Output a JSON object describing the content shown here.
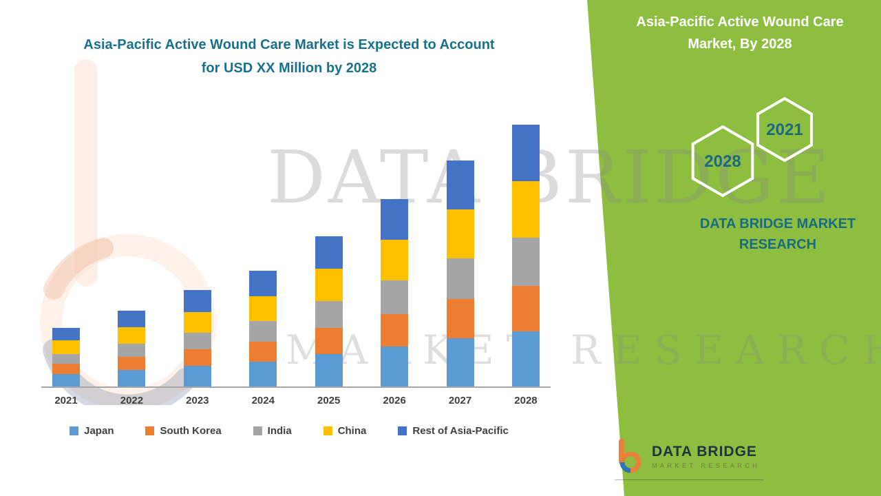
{
  "header": {
    "line1": "Asia-Pacific Active Wound Care Market is Expected to Account",
    "line2": "for USD XX Million by 2028"
  },
  "side_panel": {
    "title_line1": "Asia-Pacific Active Wound Care",
    "title_line2": "Market, By 2028",
    "hex_left_label": "2028",
    "hex_right_label": "2021",
    "brand_line1": "DATA BRIDGE MARKET",
    "brand_line2": "RESEARCH",
    "bg_color": "#8DBE3F",
    "teal_text_color": "#1B6B80"
  },
  "watermark": {
    "line1": "DATA BRIDGE",
    "line2": "MARKET RESEARCH"
  },
  "footer_logo": {
    "name": "DATA BRIDGE",
    "subtitle": "MARKET RESEARCH"
  },
  "chart_data": {
    "type": "bar",
    "stacked": true,
    "title": "Asia-Pacific Active Wound Care Market is Expected to Account for USD XX Million by 2028",
    "xlabel": "",
    "ylabel": "",
    "grid": false,
    "legend_position": "bottom",
    "ylim": [
      0,
      400
    ],
    "categories": [
      "2021",
      "2022",
      "2023",
      "2024",
      "2025",
      "2026",
      "2027",
      "2028"
    ],
    "series": [
      {
        "name": "Japan",
        "color": "#5B9BD5",
        "values": [
          18,
          24,
          30,
          36,
          47,
          58,
          70,
          80
        ]
      },
      {
        "name": "South Korea",
        "color": "#ED7D31",
        "values": [
          15,
          19,
          24,
          29,
          38,
          47,
          57,
          66
        ]
      },
      {
        "name": "India",
        "color": "#A5A5A5",
        "values": [
          14,
          19,
          24,
          30,
          39,
          49,
          59,
          70
        ]
      },
      {
        "name": "China",
        "color": "#FFC000",
        "values": [
          20,
          24,
          30,
          36,
          47,
          59,
          71,
          82
        ]
      },
      {
        "name": "Rest of Asia-Pacific",
        "color": "#4472C4",
        "values": [
          18,
          24,
          32,
          37,
          47,
          59,
          71,
          82
        ]
      }
    ],
    "totals": [
      85,
      110,
      140,
      168,
      218,
      272,
      328,
      380
    ]
  }
}
